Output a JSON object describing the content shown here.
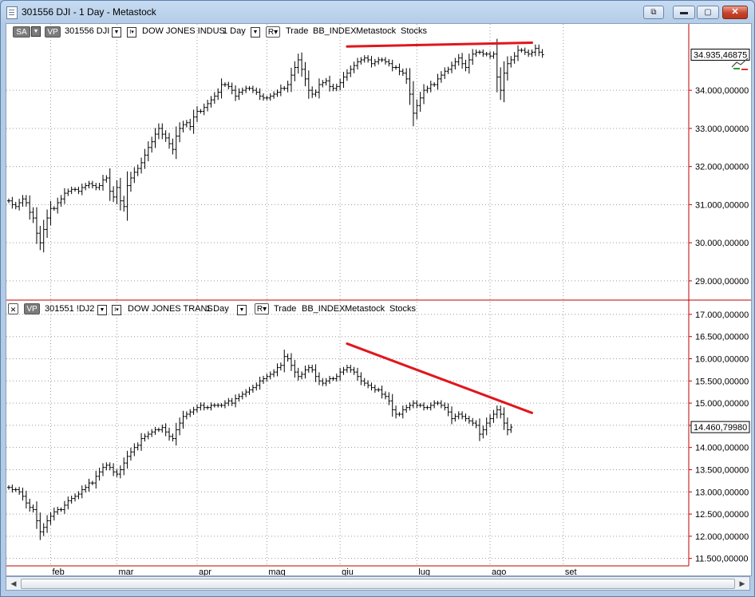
{
  "window": {
    "title": "301556 DJI - 1 Day - Metastock",
    "buttons": {
      "restore_icon": "restore-icon",
      "minimize": "▬",
      "maximize": "▢",
      "close": "✕"
    }
  },
  "panes": [
    {
      "toolbar": {
        "sa": "SA",
        "vp": "VP",
        "id": "301556 DJI",
        "name": "DOW JONES INDUS",
        "period": "1 Day",
        "r": "R▾",
        "fields": [
          "Trade",
          "BB_INDEX",
          "Metastock",
          "Stocks"
        ]
      },
      "last_price": "34.935,46875"
    },
    {
      "toolbar": {
        "x": "✕",
        "vp": "VP",
        "id": "301551 !DJ2",
        "name": "DOW JONES TRANS",
        "period": "1 Day",
        "r": "R▾",
        "fields": [
          "Trade",
          "BB_INDEX",
          "Metastock",
          "Stocks"
        ]
      },
      "last_price": "14.460,79980"
    }
  ],
  "chart_data": [
    {
      "type": "ohlc",
      "title": "DOW JONES INDUS",
      "ylim": [
        28600,
        35700
      ],
      "y_ticks": [
        {
          "value": 29000,
          "label": "29.000,00000"
        },
        {
          "value": 30000,
          "label": "30.000,00000"
        },
        {
          "value": 31000,
          "label": "31.000,00000"
        },
        {
          "value": 32000,
          "label": "32.000,00000"
        },
        {
          "value": 33000,
          "label": "33.000,00000"
        },
        {
          "value": 34000,
          "label": "34.000,00000"
        }
      ],
      "close_series": [
        31100,
        31000,
        30950,
        31050,
        31150,
        31050,
        30800,
        30650,
        30250,
        30000,
        30350,
        30650,
        30900,
        30900,
        31050,
        31150,
        31300,
        31350,
        31400,
        31400,
        31350,
        31450,
        31500,
        31550,
        31500,
        31450,
        31500,
        31650,
        31700,
        31350,
        31200,
        31450,
        31100,
        30950,
        31500,
        31700,
        31850,
        31950,
        32100,
        32300,
        32500,
        32650,
        32850,
        33000,
        32850,
        32750,
        32600,
        32450,
        32800,
        33000,
        33100,
        33150,
        33050,
        33300,
        33450,
        33450,
        33550,
        33650,
        33750,
        33850,
        33950,
        34150,
        34150,
        34100,
        34000,
        33850,
        33950,
        34000,
        34050,
        34050,
        34000,
        33950,
        33850,
        33800,
        33800,
        33850,
        33900,
        33950,
        34050,
        34050,
        34150,
        34400,
        34600,
        34800,
        34550,
        34300,
        34000,
        33900,
        33950,
        34150,
        34200,
        34250,
        34100,
        34050,
        34100,
        34200,
        34350,
        34450,
        34550,
        34650,
        34750,
        34800,
        34850,
        34800,
        34700,
        34750,
        34800,
        34800,
        34750,
        34700,
        34600,
        34600,
        34500,
        34450,
        34300,
        33900,
        33400,
        33600,
        33800,
        34000,
        34050,
        34150,
        34150,
        34300,
        34400,
        34500,
        34550,
        34650,
        34750,
        34850,
        34700,
        34600,
        34800,
        34950,
        35000,
        35000,
        34950,
        34950,
        34900,
        34950,
        34350,
        34000,
        34450,
        34700,
        34800,
        34900,
        35050,
        35050,
        35000,
        34950,
        35000,
        35100,
        35000,
        34935
      ],
      "annotations": [
        {
          "type": "trendline",
          "color": "#e0161c",
          "from": {
            "index": 97,
            "value": 35150
          },
          "to": {
            "index": 150,
            "value": 35250
          }
        }
      ]
    },
    {
      "type": "ohlc",
      "title": "DOW JONES TRANS",
      "ylim": [
        11350,
        17250
      ],
      "y_ticks": [
        {
          "value": 11500,
          "label": "11.500,00000"
        },
        {
          "value": 12000,
          "label": "12.000,00000"
        },
        {
          "value": 12500,
          "label": "12.500,00000"
        },
        {
          "value": 13000,
          "label": "13.000,00000"
        },
        {
          "value": 13500,
          "label": "13.500,00000"
        },
        {
          "value": 14000,
          "label": "14.000,00000"
        },
        {
          "value": 14500,
          "label": "14.500,00000"
        },
        {
          "value": 15000,
          "label": "15.000,00000"
        },
        {
          "value": 15500,
          "label": "15.500,00000"
        },
        {
          "value": 16000,
          "label": "16.000,00000"
        },
        {
          "value": 16500,
          "label": "16.500,00000"
        },
        {
          "value": 17000,
          "label": "17.000,00000"
        }
      ],
      "close_series": [
        13100,
        13050,
        13050,
        13000,
        12900,
        12750,
        12650,
        12600,
        12350,
        12100,
        12200,
        12350,
        12450,
        12550,
        12600,
        12600,
        12700,
        12800,
        12850,
        12900,
        12950,
        13050,
        13100,
        13200,
        13200,
        13350,
        13450,
        13550,
        13600,
        13550,
        13450,
        13400,
        13500,
        13650,
        13800,
        13900,
        14000,
        14050,
        14200,
        14250,
        14300,
        14350,
        14400,
        14400,
        14450,
        14350,
        14250,
        14200,
        14400,
        14550,
        14700,
        14750,
        14800,
        14850,
        14900,
        14950,
        14900,
        14900,
        14950,
        14950,
        14950,
        14950,
        15000,
        15050,
        15000,
        15100,
        15150,
        15200,
        15250,
        15300,
        15350,
        15400,
        15500,
        15550,
        15600,
        15650,
        15700,
        15800,
        15850,
        16050,
        16000,
        15850,
        15700,
        15600,
        15650,
        15750,
        15800,
        15750,
        15600,
        15500,
        15450,
        15500,
        15550,
        15550,
        15600,
        15700,
        15750,
        15800,
        15750,
        15700,
        15600,
        15500,
        15450,
        15400,
        15350,
        15300,
        15300,
        15200,
        15150,
        15050,
        14850,
        14750,
        14750,
        14850,
        14900,
        14950,
        15000,
        14950,
        14950,
        14900,
        14900,
        14950,
        15000,
        15000,
        14950,
        14900,
        14800,
        14650,
        14700,
        14750,
        14700,
        14650,
        14600,
        14550,
        14500,
        14300,
        14400,
        14550,
        14650,
        14750,
        14850,
        14750,
        14550,
        14400,
        14460
      ],
      "annotations": [
        {
          "type": "trendline",
          "color": "#e0161c",
          "from": {
            "index": 97,
            "value": 16340
          },
          "to": {
            "index": 150,
            "value": 14780
          }
        }
      ]
    }
  ],
  "x_axis": {
    "labels": [
      {
        "index": 12,
        "label": "feb"
      },
      {
        "index": 31,
        "label": "mar"
      },
      {
        "index": 54,
        "label": "apr"
      },
      {
        "index": 74,
        "label": "mag"
      },
      {
        "index": 95,
        "label": "giu"
      },
      {
        "index": 117,
        "label": "lug"
      },
      {
        "index": 138,
        "label": "ago"
      },
      {
        "index": 159,
        "label": "set"
      }
    ]
  }
}
